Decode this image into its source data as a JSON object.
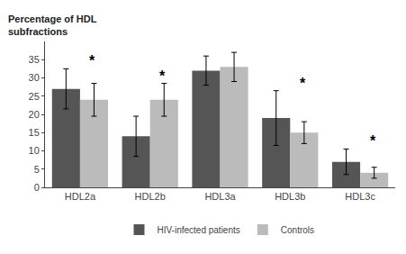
{
  "chart_data": {
    "type": "bar",
    "categories": [
      "HDL2a",
      "HDL2b",
      "HDL3a",
      "HDL3b",
      "HDL3c"
    ],
    "series": [
      {
        "name": "HIV-infected patients",
        "color": "#555555",
        "values": [
          27,
          14,
          32,
          19,
          7
        ],
        "errors": [
          5.5,
          5.5,
          4,
          7.5,
          3.5
        ]
      },
      {
        "name": "Controls",
        "color": "#bbbbbb",
        "values": [
          24,
          24,
          33,
          15,
          4
        ],
        "errors": [
          4.5,
          4.5,
          4,
          3,
          1.5
        ]
      }
    ],
    "ylabel": "Percentage of HDL\nsubfractions",
    "ylim": [
      0,
      40
    ],
    "yticks": [
      0,
      5,
      10,
      15,
      20,
      25,
      30,
      35
    ],
    "grid": false,
    "legend": "bottom",
    "annotations": [
      {
        "category": "HDL2a",
        "text": "*"
      },
      {
        "category": "HDL2b",
        "text": "*"
      },
      {
        "category": "HDL3b",
        "text": "*"
      },
      {
        "category": "HDL3c",
        "text": "*"
      }
    ]
  }
}
